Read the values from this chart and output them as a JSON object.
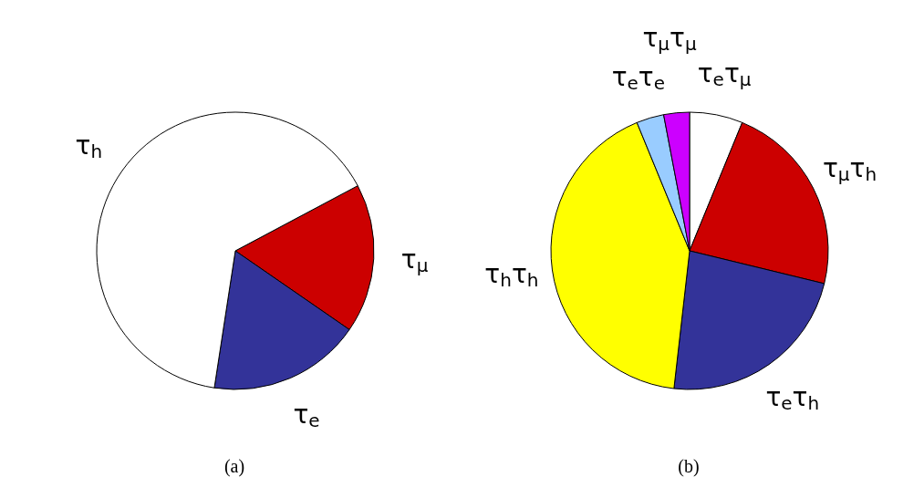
{
  "chart_data": [
    {
      "type": "pie",
      "categories": [
        "τ$_{μ}$",
        "τ$_{e}$",
        "τ$_{h}$"
      ],
      "values": [
        17.4,
        17.8,
        64.8
      ],
      "colors": [
        "#cc0000",
        "#333399",
        "#ffffff"
      ],
      "legend": false,
      "annotations": [
        "(a)"
      ]
    },
    {
      "type": "pie",
      "categories": [
        "τ$_{e}$τ$_{μ}$",
        "τ$_{μ}$τ$_{h}$",
        "τ$_{e}$τ$_{h}$",
        "τ$_{h}$τ$_{h}$",
        "τ$_{e}$τ$_{e}$",
        "τ$_{μ}$τ$_{μ}$"
      ],
      "values": [
        6.2,
        22.6,
        23.0,
        42.0,
        3.2,
        3.0
      ],
      "colors": [
        "#ffffff",
        "#cc0000",
        "#333399",
        "#ffff00",
        "#99ccff",
        "#cc00ff"
      ],
      "legend": false,
      "annotations": [
        "(b)"
      ]
    }
  ]
}
